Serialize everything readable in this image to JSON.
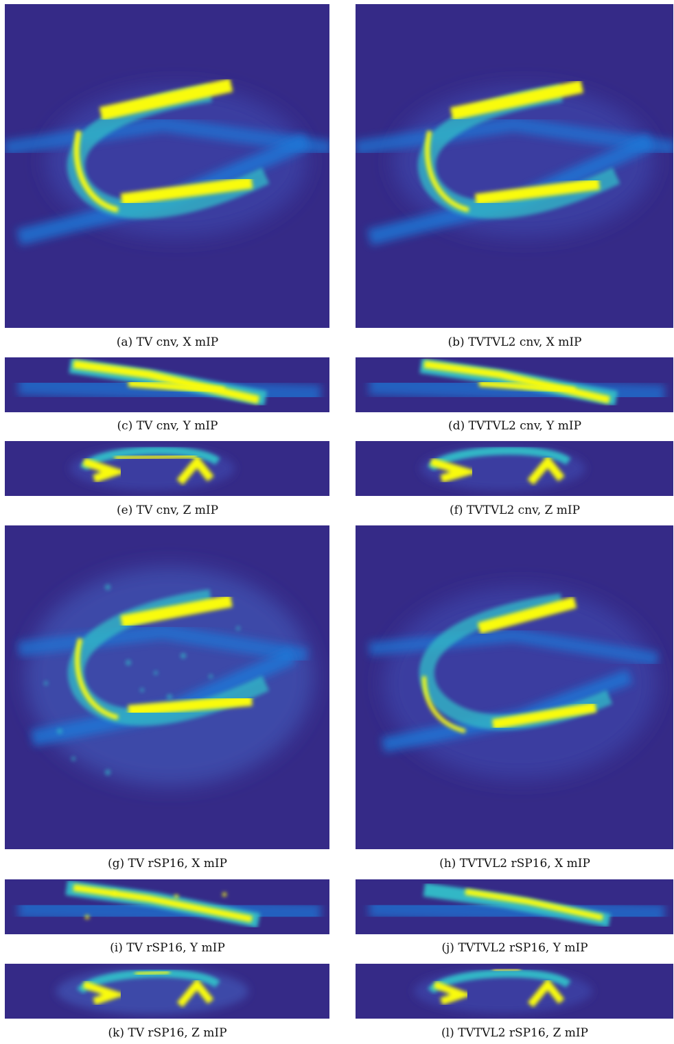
{
  "figure": {
    "panels": [
      {
        "id": "a",
        "caption": "(a) TV cnv, X mIP",
        "method": "TV cnv",
        "projection": "X mIP"
      },
      {
        "id": "b",
        "caption": "(b) TVTVL2 cnv, X mIP",
        "method": "TVTVL2 cnv",
        "projection": "X mIP"
      },
      {
        "id": "c",
        "caption": "(c) TV cnv, Y mIP",
        "method": "TV cnv",
        "projection": "Y mIP"
      },
      {
        "id": "d",
        "caption": "(d) TVTVL2 cnv, Y mIP",
        "method": "TVTVL2 cnv",
        "projection": "Y mIP"
      },
      {
        "id": "e",
        "caption": "(e) TV cnv, Z mIP",
        "method": "TV cnv",
        "projection": "Z mIP"
      },
      {
        "id": "f",
        "caption": "(f) TVTVL2 cnv, Z mIP",
        "method": "TVTVL2 cnv",
        "projection": "Z mIP"
      },
      {
        "id": "g",
        "caption": "(g) TV rSP16, X mIP",
        "method": "TV rSP16",
        "projection": "X mIP"
      },
      {
        "id": "h",
        "caption": "(h) TVTVL2 rSP16, X mIP",
        "method": "TVTVL2 rSP16",
        "projection": "X mIP"
      },
      {
        "id": "i",
        "caption": "(i) TV rSP16, Y mIP",
        "method": "TV rSP16",
        "projection": "Y mIP"
      },
      {
        "id": "j",
        "caption": "(j) TVTVL2 rSP16, Y mIP",
        "method": "TVTVL2 rSP16",
        "projection": "Y mIP"
      },
      {
        "id": "k",
        "caption": "(k) TV rSP16, Z mIP",
        "method": "TV rSP16",
        "projection": "Z mIP"
      },
      {
        "id": "l",
        "caption": "(l) TVTVL2 rSP16, Z mIP",
        "method": "TVTVL2 rSP16",
        "projection": "Z mIP"
      }
    ],
    "colors": {
      "background": "#352a87",
      "low": "#1f78d8",
      "mid": "#33b7c6",
      "high": "#f9fb0e",
      "peak": "#fbe63a"
    }
  }
}
